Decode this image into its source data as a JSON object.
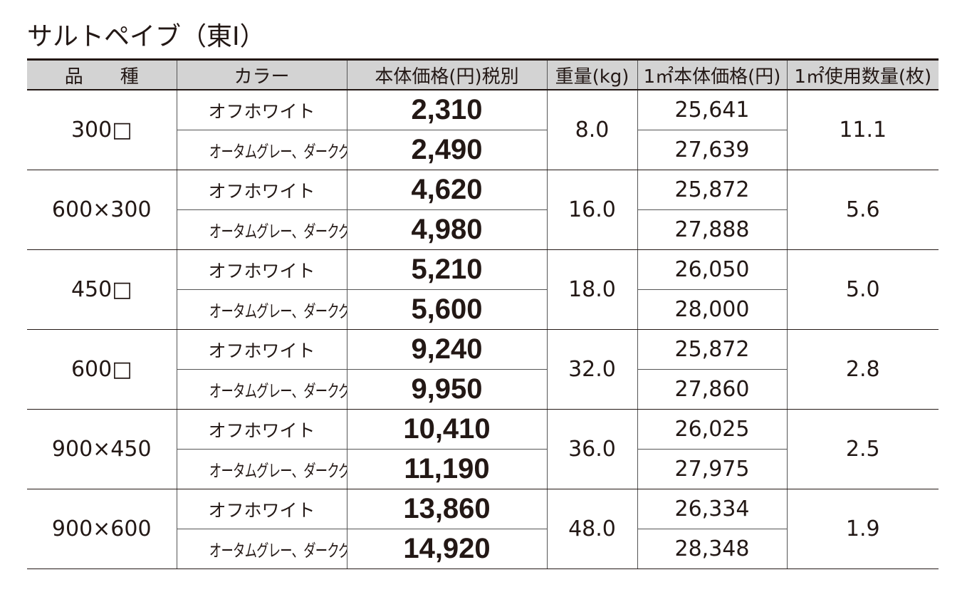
{
  "title": "サルトペイブ（東Ⅰ）",
  "table": {
    "header": [
      "品　　種",
      "カラー",
      "本体価格(円)税別",
      "重量(kg)",
      "1㎡本体価格(円)",
      "1㎡使用数量(枚)"
    ],
    "rows": [
      {
        "type": "300□",
        "weight": "8.0",
        "count": "11.1",
        "variants": [
          {
            "color": "オフホワイト",
            "price": "2,310",
            "unit_price": "25,641"
          },
          {
            "color": "オータムグレー、ダークグレー",
            "price": "2,490",
            "unit_price": "27,639"
          }
        ]
      },
      {
        "type": "600×300",
        "weight": "16.0",
        "count": "5.6",
        "variants": [
          {
            "color": "オフホワイト",
            "price": "4,620",
            "unit_price": "25,872"
          },
          {
            "color": "オータムグレー、ダークグレー",
            "price": "4,980",
            "unit_price": "27,888"
          }
        ]
      },
      {
        "type": "450□",
        "weight": "18.0",
        "count": "5.0",
        "variants": [
          {
            "color": "オフホワイト",
            "price": "5,210",
            "unit_price": "26,050"
          },
          {
            "color": "オータムグレー、ダークグレー",
            "price": "5,600",
            "unit_price": "28,000"
          }
        ]
      },
      {
        "type": "600□",
        "weight": "32.0",
        "count": "2.8",
        "variants": [
          {
            "color": "オフホワイト",
            "price": "9,240",
            "unit_price": "25,872"
          },
          {
            "color": "オータムグレー、ダークグレー",
            "price": "9,950",
            "unit_price": "27,860"
          }
        ]
      },
      {
        "type": "900×450",
        "weight": "36.0",
        "count": "2.5",
        "variants": [
          {
            "color": "オフホワイト",
            "price": "10,410",
            "unit_price": "26,025"
          },
          {
            "color": "オータムグレー、ダークグレー",
            "price": "11,190",
            "unit_price": "27,975"
          }
        ]
      },
      {
        "type": "900×600",
        "weight": "48.0",
        "count": "1.9",
        "variants": [
          {
            "color": "オフホワイト",
            "price": "13,860",
            "unit_price": "26,334"
          },
          {
            "color": "オータムグレー、ダークグレー",
            "price": "14,920",
            "unit_price": "28,348"
          }
        ]
      }
    ]
  }
}
